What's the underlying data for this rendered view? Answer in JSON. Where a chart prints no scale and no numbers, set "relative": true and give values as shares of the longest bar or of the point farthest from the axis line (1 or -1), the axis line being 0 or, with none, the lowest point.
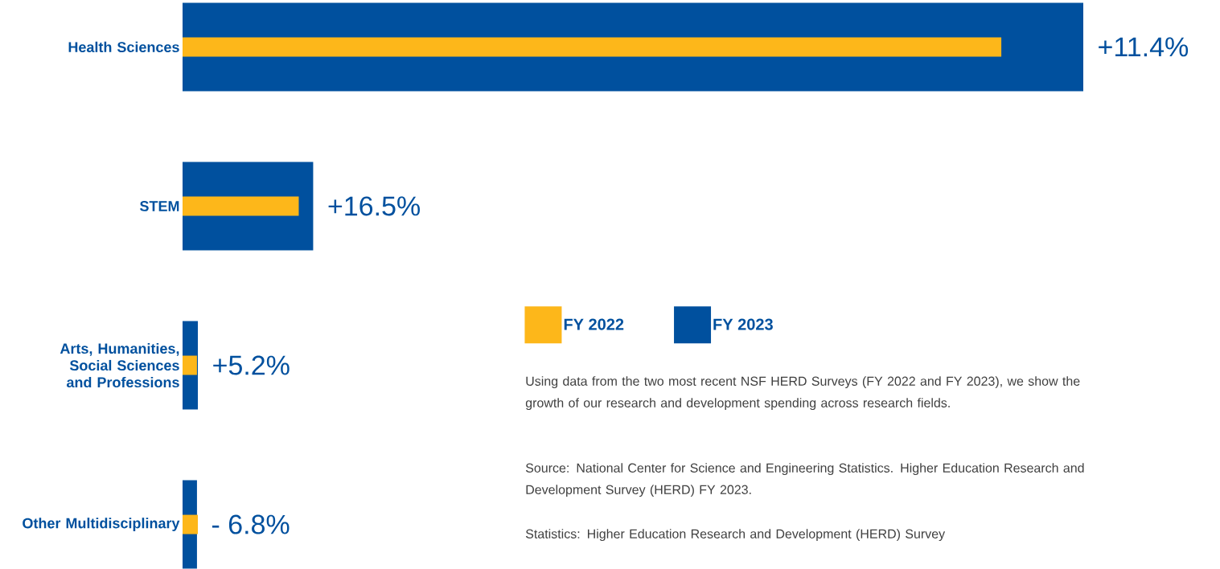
{
  "chart_data": {
    "type": "bar",
    "orientation": "horizontal",
    "relative": true,
    "categories": [
      "Health Sciences",
      "STEM",
      "Arts, Humanities, Social Sciences and Professions",
      "Other Multidisciplinary"
    ],
    "series": [
      {
        "name": "FY 2022",
        "color": "#fdb71a",
        "values": [
          0.909,
          0.129,
          0.016,
          0.017
        ]
      },
      {
        "name": "FY 2023",
        "color": "#00509e",
        "values": [
          1.0,
          0.145,
          0.017,
          0.016
        ]
      }
    ],
    "legend": "right",
    "tick_labels": "y",
    "annotations": [
      {
        "text": "+11.4%",
        "x": 1.0,
        "y": "Health Sciences"
      },
      {
        "text": "+16.5%",
        "x": 0.145,
        "y": "STEM"
      },
      {
        "text": "+5.2%",
        "x": 0.017,
        "y": "Arts, Humanities, Social Sciences and Professions"
      },
      {
        "text": "- 6.8%",
        "x": 0.016,
        "y": "Other Multidisciplinary"
      },
      "Using data from the two most recent NSF HERD Surveys (FY 2022 and FY 2023), we show the growth of our research and development spending across research fields.",
      "Source: National Center for Science and Engineering Statistics. Higher Education Research and Development Survey (HERD) FY 2023.",
      "Statistics: Higher Education Research and Development (HERD) Survey"
    ]
  }
}
